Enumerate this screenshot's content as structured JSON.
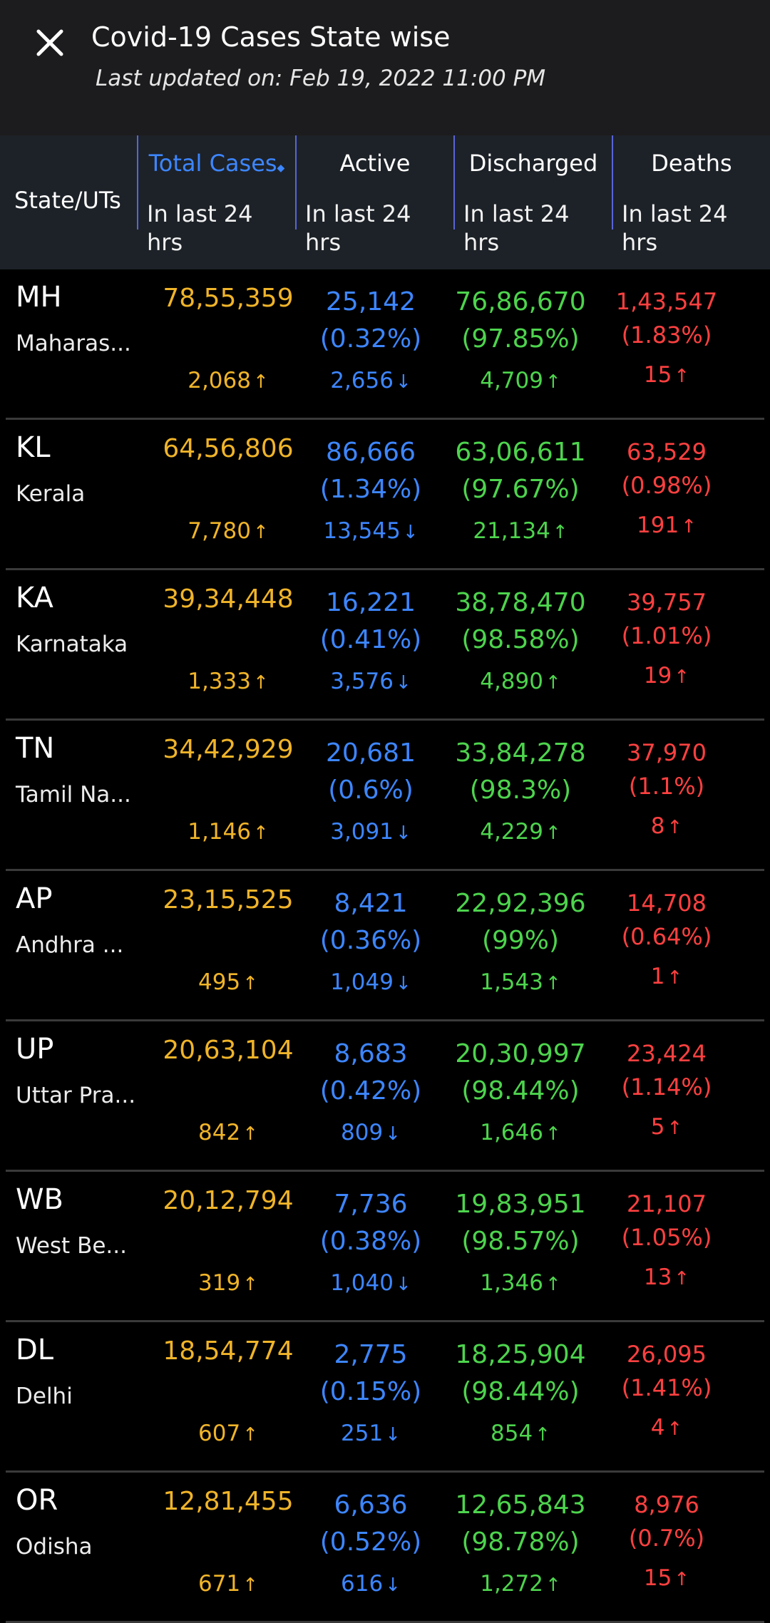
{
  "header": {
    "title": "Covid-19 Cases State wise",
    "last_updated": "Last updated on: Feb 19, 2022 11:00 PM",
    "close_icon": "close-icon"
  },
  "table_header": {
    "state_label": "State/UTs",
    "columns": [
      {
        "label": "Total Cases",
        "sub": "In last 24\nhrs",
        "selected": true
      },
      {
        "label": "Active",
        "sub": "In last 24\nhrs",
        "selected": false
      },
      {
        "label": "Discharged",
        "sub": "In last 24\nhrs",
        "selected": false
      },
      {
        "label": "Deaths",
        "sub": "In last 24\nhrs",
        "selected": false
      }
    ]
  },
  "colors": {
    "cases": "#f0b429",
    "active": "#3d86ff",
    "discharged": "#4dd44d",
    "deaths": "#ff4040",
    "header_accent": "#5965d8"
  },
  "rows": [
    {
      "abbr": "MH",
      "name": "Maharas...",
      "cases": "78,55,359",
      "cases_24h": "2,068",
      "active": "25,142",
      "active_pct": "(0.32%)",
      "active_24h": "2,656",
      "disch": "76,86,670",
      "disch_pct": "(97.85%)",
      "disch_24h": "4,709",
      "deaths": "1,43,547",
      "deaths_pct": "(1.83%)",
      "deaths_24h": "15"
    },
    {
      "abbr": "KL",
      "name": "Kerala",
      "cases": "64,56,806",
      "cases_24h": "7,780",
      "active": "86,666",
      "active_pct": "(1.34%)",
      "active_24h": "13,545",
      "disch": "63,06,611",
      "disch_pct": "(97.67%)",
      "disch_24h": "21,134",
      "deaths": "63,529",
      "deaths_pct": "(0.98%)",
      "deaths_24h": "191"
    },
    {
      "abbr": "KA",
      "name": "Karnataka",
      "cases": "39,34,448",
      "cases_24h": "1,333",
      "active": "16,221",
      "active_pct": "(0.41%)",
      "active_24h": "3,576",
      "disch": "38,78,470",
      "disch_pct": "(98.58%)",
      "disch_24h": "4,890",
      "deaths": "39,757",
      "deaths_pct": "(1.01%)",
      "deaths_24h": "19"
    },
    {
      "abbr": "TN",
      "name": "Tamil Na...",
      "cases": "34,42,929",
      "cases_24h": "1,146",
      "active": "20,681",
      "active_pct": "(0.6%)",
      "active_24h": "3,091",
      "disch": "33,84,278",
      "disch_pct": "(98.3%)",
      "disch_24h": "4,229",
      "deaths": "37,970",
      "deaths_pct": "(1.1%)",
      "deaths_24h": "8"
    },
    {
      "abbr": "AP",
      "name": "Andhra ...",
      "cases": "23,15,525",
      "cases_24h": "495",
      "active": "8,421",
      "active_pct": "(0.36%)",
      "active_24h": "1,049",
      "disch": "22,92,396",
      "disch_pct": "(99%)",
      "disch_24h": "1,543",
      "deaths": "14,708",
      "deaths_pct": "(0.64%)",
      "deaths_24h": "1"
    },
    {
      "abbr": "UP",
      "name": "Uttar Pra...",
      "cases": "20,63,104",
      "cases_24h": "842",
      "active": "8,683",
      "active_pct": "(0.42%)",
      "active_24h": "809",
      "disch": "20,30,997",
      "disch_pct": "(98.44%)",
      "disch_24h": "1,646",
      "deaths": "23,424",
      "deaths_pct": "(1.14%)",
      "deaths_24h": "5"
    },
    {
      "abbr": "WB",
      "name": "West Be...",
      "cases": "20,12,794",
      "cases_24h": "319",
      "active": "7,736",
      "active_pct": "(0.38%)",
      "active_24h": "1,040",
      "disch": "19,83,951",
      "disch_pct": "(98.57%)",
      "disch_24h": "1,346",
      "deaths": "21,107",
      "deaths_pct": "(1.05%)",
      "deaths_24h": "13"
    },
    {
      "abbr": "DL",
      "name": "Delhi",
      "cases": "18,54,774",
      "cases_24h": "607",
      "active": "2,775",
      "active_pct": "(0.15%)",
      "active_24h": "251",
      "disch": "18,25,904",
      "disch_pct": "(98.44%)",
      "disch_24h": "854",
      "deaths": "26,095",
      "deaths_pct": "(1.41%)",
      "deaths_24h": "4"
    },
    {
      "abbr": "OR",
      "name": "Odisha",
      "cases": "12,81,455",
      "cases_24h": "671",
      "active": "6,636",
      "active_pct": "(0.52%)",
      "active_24h": "616",
      "disch": "12,65,843",
      "disch_pct": "(98.78%)",
      "disch_24h": "1,272",
      "deaths": "8,976",
      "deaths_pct": "(0.7%)",
      "deaths_24h": "15"
    }
  ]
}
